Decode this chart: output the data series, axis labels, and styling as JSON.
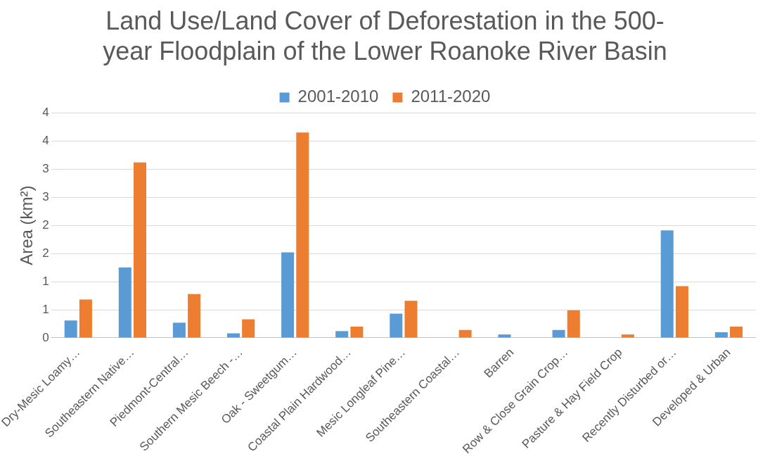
{
  "chart_data": {
    "type": "bar",
    "title": "Land Use/Land Cover of Deforestation in the 500-year Floodplain of the Lower Roanoke River Basin",
    "ylabel": "Area (km²)",
    "categories": [
      "Dry-Mesic Loamy…",
      "Southeastern Native…",
      "Piedmont-Central…",
      "Southern Mesic Beech -…",
      "Oak - Sweetgum…",
      "Coastal Plain Hardwood…",
      "Mesic Longleaf Pine…",
      "Southeastern Coastal…",
      "Barren",
      "Row & Close Grain Crop…",
      "Pasture & Hay Field Crop",
      "Recently Disturbed or…",
      "Developed & Urban"
    ],
    "series": [
      {
        "name": "2001-2010",
        "color": "#5b9bd5",
        "values": [
          0.31,
          1.25,
          0.27,
          0.08,
          1.52,
          0.12,
          0.43,
          0,
          0.06,
          0.14,
          0,
          1.91,
          0.1
        ]
      },
      {
        "name": "2011-2020",
        "color": "#ed7d31",
        "values": [
          0.68,
          3.12,
          0.78,
          0.33,
          3.65,
          0.2,
          0.66,
          0.14,
          0,
          0.49,
          0.06,
          0.92,
          0.2
        ]
      }
    ],
    "ylim": [
      0,
      4
    ],
    "yticks": [
      0,
      {
        "value": 0.5,
        "label": "1"
      },
      1,
      {
        "value": 1.5,
        "label": "2"
      },
      2,
      {
        "value": 2.5,
        "label": "3"
      },
      3,
      {
        "value": 3.5,
        "label": "4"
      },
      4
    ],
    "grid": "y",
    "legend": "top"
  }
}
